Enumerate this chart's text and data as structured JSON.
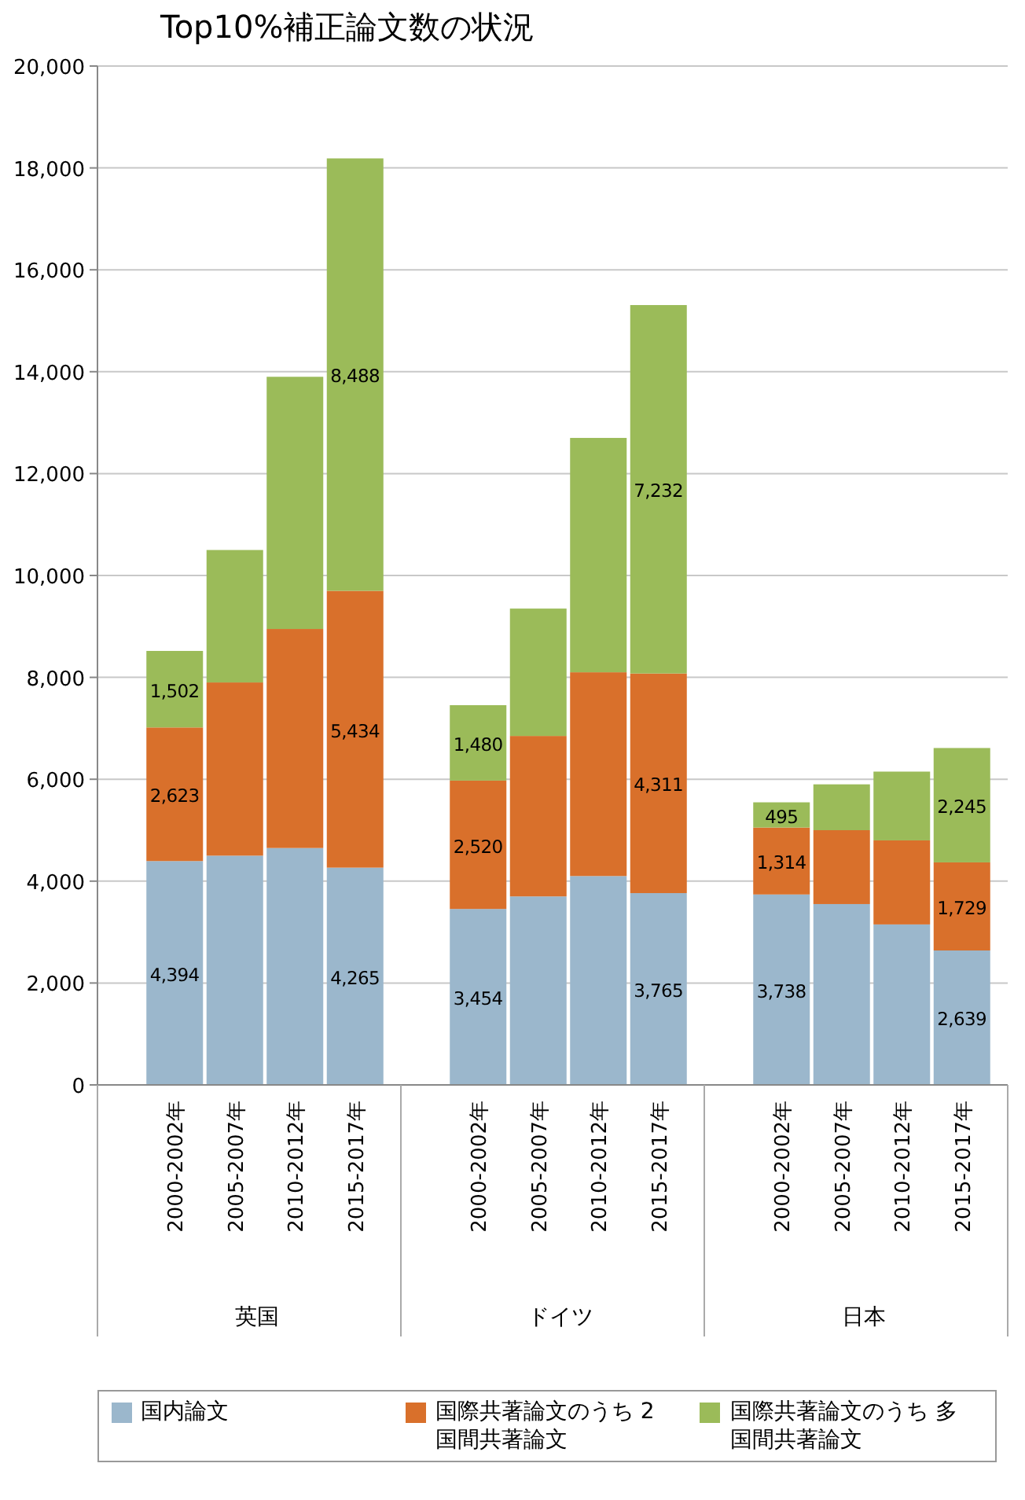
{
  "chart_data": [
    {
      "type": "bar",
      "stacked": true,
      "title": "Top10%補正論文数の状況",
      "xlabel": "英国",
      "categories": [
        "2000-2002年",
        "2005-2007年",
        "2010-2012年",
        "2015-2017年"
      ],
      "ylim": [
        0,
        20000
      ],
      "yticks": [
        {
          "value": 0,
          "label": "0"
        },
        {
          "value": 2000,
          "label": "2,000"
        },
        {
          "value": 4000,
          "label": "4,000"
        },
        {
          "value": 6000,
          "label": "6,000"
        },
        {
          "value": 8000,
          "label": "8,000"
        },
        {
          "value": 10000,
          "label": "10,000"
        },
        {
          "value": 12000,
          "label": "12,000"
        },
        {
          "value": 14000,
          "label": "14,000"
        },
        {
          "value": 16000,
          "label": "16,000"
        },
        {
          "value": 18000,
          "label": "18,000"
        },
        {
          "value": 20000,
          "label": "20,000"
        }
      ],
      "grid": "y",
      "legend": "bottom",
      "series": [
        {
          "name": "国内論文",
          "color": "#9bb7cc",
          "values": [
            4394,
            4500,
            4650,
            4265
          ],
          "value_labels": [
            "4,394",
            null,
            null,
            "4,265"
          ]
        },
        {
          "name": "国際共著論文のうち 2国間共著論文",
          "color": "#d9702b",
          "values": [
            2623,
            3400,
            4300,
            5434
          ],
          "value_labels": [
            "2,623",
            null,
            null,
            "5,434"
          ]
        },
        {
          "name": "国際共著論文のうち 多国間共著論文",
          "color": "#9bbb59",
          "values": [
            1502,
            2600,
            4950,
            8488
          ],
          "value_labels": [
            "1,502",
            null,
            null,
            "8,488"
          ]
        }
      ]
    },
    {
      "type": "bar",
      "stacked": true,
      "xlabel": "ドイツ",
      "categories": [
        "2000-2002年",
        "2005-2007年",
        "2010-2012年",
        "2015-2017年"
      ],
      "ylim": [
        0,
        20000
      ],
      "yticks": [
        0,
        2000,
        4000,
        6000,
        8000,
        10000,
        12000,
        14000,
        16000,
        18000,
        20000
      ],
      "grid": "y",
      "tick_labels": "x",
      "series": [
        {
          "color": "#9bb7cc",
          "values": [
            3454,
            3700,
            4100,
            3765
          ],
          "value_labels": [
            "3,454",
            null,
            null,
            "3,765"
          ]
        },
        {
          "color": "#d9702b",
          "values": [
            2520,
            3150,
            4000,
            4311
          ],
          "value_labels": [
            "2,520",
            null,
            null,
            "4,311"
          ]
        },
        {
          "color": "#9bbb59",
          "values": [
            1480,
            2500,
            4600,
            7232
          ],
          "value_labels": [
            "1,480",
            null,
            null,
            "7,232"
          ]
        }
      ]
    },
    {
      "type": "bar",
      "stacked": true,
      "xlabel": "日本",
      "categories": [
        "2000-2002年",
        "2005-2007年",
        "2010-2012年",
        "2015-2017年"
      ],
      "ylim": [
        0,
        20000
      ],
      "yticks": [
        0,
        2000,
        4000,
        6000,
        8000,
        10000,
        12000,
        14000,
        16000,
        18000,
        20000
      ],
      "grid": "y",
      "tick_labels": "x",
      "series": [
        {
          "color": "#9bb7cc",
          "values": [
            3738,
            3550,
            3150,
            2639
          ],
          "value_labels": [
            "3,738",
            null,
            null,
            "2,639"
          ]
        },
        {
          "color": "#d9702b",
          "values": [
            1314,
            1450,
            1650,
            1729
          ],
          "value_labels": [
            "1,314",
            null,
            null,
            "1,729"
          ]
        },
        {
          "color": "#9bbb59",
          "values": [
            495,
            900,
            1350,
            2245
          ],
          "value_labels": [
            "495",
            null,
            null,
            "2,245"
          ]
        }
      ]
    }
  ]
}
